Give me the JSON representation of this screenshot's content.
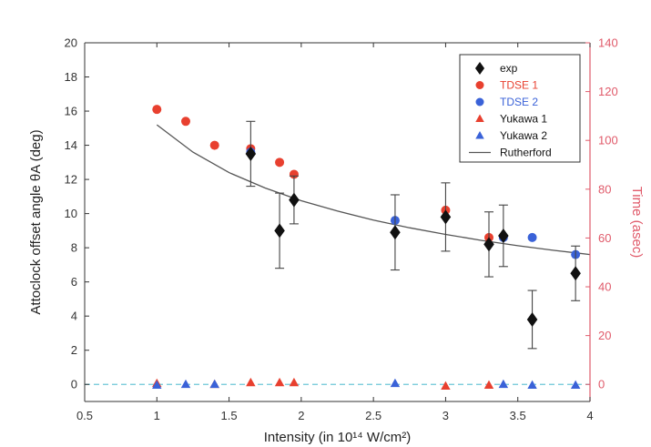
{
  "chart_data": {
    "type": "scatter",
    "xlabel": "Intensity (in 10¹⁴ W/cm²)",
    "ylabel_left": "Attoclock offset angle θA (deg)",
    "ylabel_right": "Time (asec)",
    "xlim": [
      0.5,
      4
    ],
    "ylim_left": [
      -1,
      20
    ],
    "ylim_right": [
      -7,
      140
    ],
    "x_ticks": [
      "0.5",
      "1",
      "1.5",
      "2",
      "2.5",
      "3",
      "3.5",
      "4"
    ],
    "y_ticks_left": [
      "0",
      "2",
      "4",
      "6",
      "8",
      "10",
      "12",
      "14",
      "16",
      "18",
      "20"
    ],
    "y_ticks_right": [
      "0",
      "20",
      "40",
      "60",
      "80",
      "100",
      "120",
      "140"
    ],
    "legend_position": "top-right",
    "colors": {
      "exp": "#111111",
      "tdse1": "#e8402f",
      "tdse2": "#3a62d8",
      "yukawa1": "#e8402f",
      "yukawa2": "#3a62d8",
      "rutherford": "#555555",
      "right_axis": "#e05a6a",
      "zero_line": "#6cc6d8"
    },
    "series": [
      {
        "name": "exp",
        "marker": "diamond",
        "x": [
          1.65,
          1.85,
          1.95,
          2.65,
          3.0,
          3.3,
          3.4,
          3.6,
          3.9
        ],
        "y": [
          13.5,
          9.0,
          10.8,
          8.9,
          9.8,
          8.2,
          8.7,
          3.8,
          6.5
        ],
        "yerr": [
          1.9,
          2.2,
          1.4,
          2.2,
          2.0,
          1.9,
          1.8,
          1.7,
          1.6
        ]
      },
      {
        "name": "TDSE 1",
        "marker": "circle",
        "x": [
          1.0,
          1.2,
          1.4,
          1.65,
          1.85,
          1.95,
          3.0,
          3.3
        ],
        "y": [
          16.1,
          15.4,
          14.0,
          13.8,
          13.0,
          12.3,
          10.2,
          8.6
        ]
      },
      {
        "name": "TDSE 2",
        "marker": "circle",
        "x": [
          1.65,
          2.65,
          3.4,
          3.6,
          3.9
        ],
        "y": [
          13.6,
          9.6,
          8.6,
          8.6,
          7.6
        ]
      },
      {
        "name": "Yukawa 1",
        "marker": "triangle",
        "x": [
          1.0,
          1.4,
          1.65,
          1.85,
          1.95,
          3.0,
          3.3
        ],
        "y": [
          0.05,
          0.0,
          0.1,
          0.1,
          0.1,
          -0.1,
          -0.05
        ]
      },
      {
        "name": "Yukawa 2",
        "marker": "triangle",
        "x": [
          1.0,
          1.2,
          1.4,
          2.65,
          3.4,
          3.6,
          3.9
        ],
        "y": [
          -0.05,
          0.0,
          0.0,
          0.05,
          0.0,
          -0.05,
          -0.05
        ]
      },
      {
        "name": "Rutherford",
        "marker": "line",
        "x": [
          1.0,
          1.25,
          1.5,
          1.75,
          2.0,
          2.25,
          2.5,
          2.75,
          3.0,
          3.25,
          3.5,
          3.75,
          4.0
        ],
        "y": [
          15.2,
          13.6,
          12.4,
          11.5,
          10.75,
          10.15,
          9.62,
          9.17,
          8.78,
          8.43,
          8.12,
          7.85,
          7.6
        ]
      }
    ]
  }
}
